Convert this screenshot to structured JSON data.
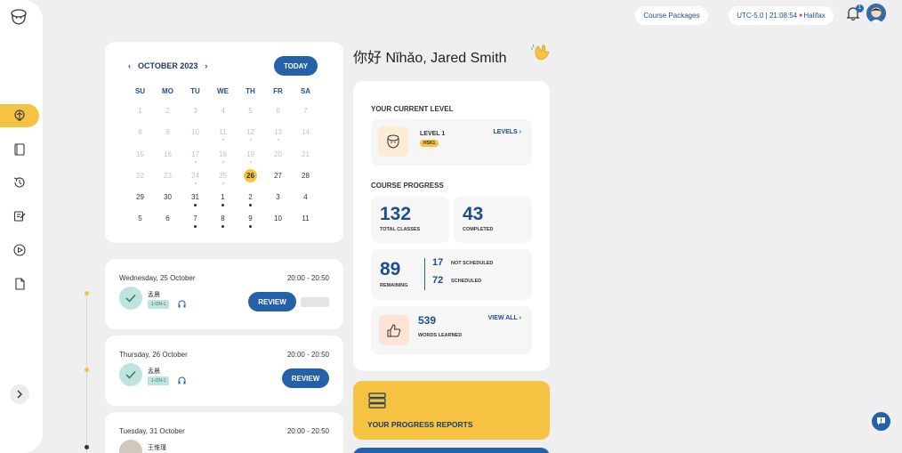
{
  "topbar": {
    "course_packages": "Course Packages",
    "timezone": "UTC-5.0 | 21:08:54",
    "city": "Halifax",
    "notification_count": "1"
  },
  "sidebar": {
    "items": [
      {
        "icon": "brain-icon",
        "active": true
      },
      {
        "icon": "book-icon"
      },
      {
        "icon": "history-icon"
      },
      {
        "icon": "homework-icon"
      },
      {
        "icon": "play-icon"
      },
      {
        "icon": "document-icon"
      }
    ]
  },
  "calendar": {
    "month": "OCTOBER 2023",
    "today_label": "TODAY",
    "weekdays": [
      "SU",
      "MO",
      "TU",
      "WE",
      "TH",
      "FR",
      "SA"
    ],
    "weeks": [
      [
        1,
        2,
        3,
        4,
        5,
        6,
        7
      ],
      [
        8,
        9,
        10,
        11,
        12,
        13,
        14
      ],
      [
        15,
        16,
        17,
        18,
        19,
        20,
        21
      ],
      [
        22,
        23,
        24,
        25,
        26,
        27,
        28
      ],
      [
        29,
        30,
        31,
        1,
        2,
        3,
        4
      ],
      [
        5,
        6,
        7,
        8,
        9,
        10,
        11
      ]
    ],
    "selected": 26
  },
  "lessons": [
    {
      "date": "Wednesday, 25 October",
      "time": "20:00 - 20:50",
      "teacher": "孟晨",
      "tag": "1-ON-1",
      "action": "REVIEW"
    },
    {
      "date": "Thursday, 26 October",
      "time": "20:00 - 20:50",
      "teacher": "孟晨",
      "tag": "1-ON-1",
      "action": "REVIEW"
    },
    {
      "date": "Tuesday, 31 October",
      "time": "20:00 - 20:50",
      "teacher": "王惟瑾"
    }
  ],
  "greeting": {
    "chinese": "你好",
    "text": "Nǐhǎo, Jared Smith"
  },
  "level": {
    "title": "YOUR CURRENT LEVEL",
    "name": "LEVEL 1",
    "hsk": "HSK1",
    "link": "LEVELS"
  },
  "progress": {
    "title": "COURSE PROGRESS",
    "total": "132",
    "total_label": "TOTAL CLASSES",
    "completed": "43",
    "completed_label": "COMPLETED",
    "remaining": "89",
    "remaining_label": "REMAINING",
    "not_scheduled": "17",
    "not_scheduled_label": "NOT SCHEDULED",
    "scheduled": "72",
    "scheduled_label": "SCHEDULED",
    "words": "539",
    "words_label": "WORDS LEARNED",
    "view_all": "VIEW ALL"
  },
  "reports": {
    "label": "YOUR PROGRESS REPORTS"
  },
  "colors": {
    "accent": "#f5c242",
    "primary": "#2461a8",
    "background": "#efefef"
  }
}
